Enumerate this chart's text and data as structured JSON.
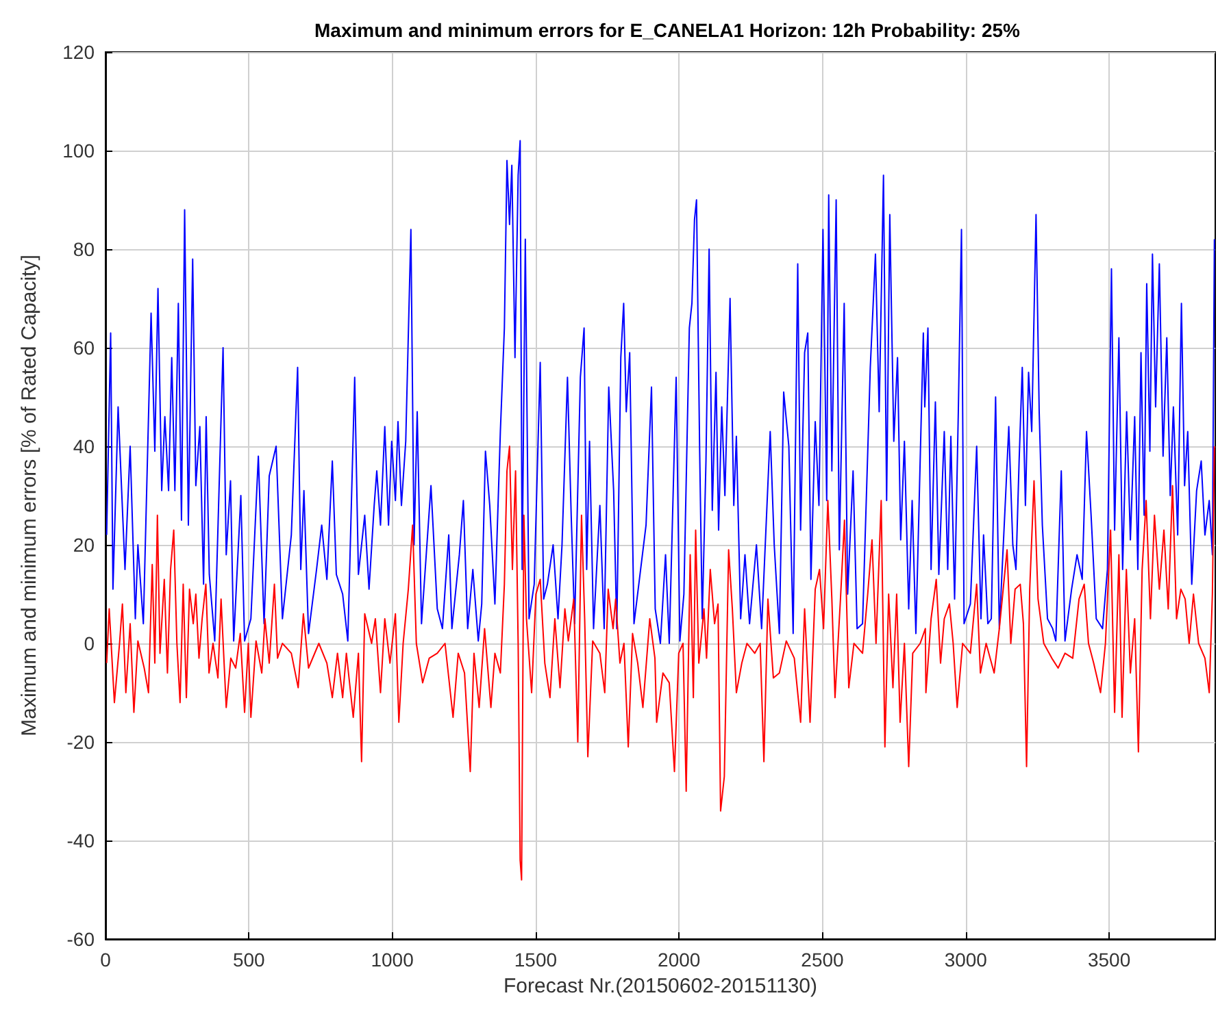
{
  "chart_data": {
    "type": "line",
    "title": "Maximum and minimum errors for E_CANELA1 Horizon: 12h Probability: 25%",
    "xlabel": "Forecast Nr.(20150602-20151130)",
    "ylabel": "Maximum and minimum errors [% of Rated Capacity]",
    "xlim": [
      0,
      3870
    ],
    "xticks": [
      0,
      500,
      1000,
      1500,
      2000,
      2500,
      3000,
      3500
    ],
    "ylim": [
      -60,
      120
    ],
    "yticks": [
      -60,
      -40,
      -20,
      0,
      20,
      40,
      60,
      80,
      100,
      120
    ],
    "grid": true,
    "line_style": "solid",
    "series": [
      {
        "color": "#0000ff",
        "x": [
          4,
          18,
          26,
          44,
          68,
          86,
          104,
          113,
          132,
          159,
          172,
          183,
          196,
          207,
          220,
          231,
          242,
          254,
          265,
          276,
          289,
          304,
          315,
          329,
          342,
          351,
          362,
          381,
          410,
          421,
          436,
          447,
          472,
          485,
          507,
          533,
          553,
          571,
          595,
          617,
          648,
          670,
          681,
          692,
          708,
          736,
          754,
          772,
          791,
          805,
          827,
          845,
          869,
          882,
          904,
          919,
          937,
          946,
          959,
          974,
          987,
          998,
          1011,
          1020,
          1032,
          1047,
          1065,
          1076,
          1087,
          1102,
          1135,
          1157,
          1175,
          1197,
          1208,
          1234,
          1248,
          1263,
          1281,
          1300,
          1312,
          1325,
          1340,
          1358,
          1377,
          1391,
          1400,
          1409,
          1417,
          1428,
          1439,
          1446,
          1453,
          1464,
          1477,
          1495,
          1516,
          1528,
          1541,
          1561,
          1578,
          1592,
          1611,
          1624,
          1636,
          1656,
          1669,
          1678,
          1688,
          1702,
          1724,
          1739,
          1755,
          1772,
          1783,
          1797,
          1807,
          1816,
          1828,
          1843,
          1885,
          1904,
          1917,
          1935,
          1953,
          1966,
          1990,
          2003,
          2017,
          2036,
          2045,
          2054,
          2061,
          2072,
          2081,
          2094,
          2105,
          2116,
          2129,
          2138,
          2149,
          2160,
          2178,
          2191,
          2200,
          2215,
          2230,
          2246,
          2270,
          2288,
          2318,
          2332,
          2350,
          2365,
          2383,
          2398,
          2414,
          2424,
          2438,
          2449,
          2460,
          2475,
          2488,
          2502,
          2515,
          2522,
          2533,
          2548,
          2559,
          2576,
          2588,
          2607,
          2621,
          2640,
          2667,
          2685,
          2698,
          2713,
          2724,
          2735,
          2749,
          2762,
          2773,
          2786,
          2801,
          2813,
          2826,
          2852,
          2857,
          2868,
          2879,
          2894,
          2906,
          2925,
          2937,
          2948,
          2961,
          2974,
          2985,
          2994,
          3016,
          3038,
          3053,
          3062,
          3077,
          3089,
          3104,
          3117,
          3139,
          3150,
          3164,
          3175,
          3186,
          3197,
          3208,
          3219,
          3230,
          3245,
          3256,
          3267,
          3285,
          3303,
          3314,
          3333,
          3346,
          3369,
          3388,
          3406,
          3421,
          3437,
          3455,
          3477,
          3494,
          3508,
          3519,
          3534,
          3547,
          3561,
          3574,
          3589,
          3600,
          3611,
          3622,
          3631,
          3642,
          3651,
          3662,
          3675,
          3688,
          3701,
          3713,
          3724,
          3739,
          3752,
          3763,
          3774,
          3788,
          3805,
          3821,
          3834,
          3849,
          3860,
          3867
        ],
        "values": [
          22,
          63,
          11,
          48,
          15,
          40,
          5,
          20,
          4,
          67,
          39,
          72,
          31,
          46,
          31,
          58,
          31,
          69,
          25,
          88,
          24,
          78,
          32,
          44,
          12,
          46,
          14,
          0.5,
          60,
          18,
          33,
          0.5,
          30,
          0.5,
          5,
          38,
          4,
          34,
          40,
          5,
          22,
          56,
          15,
          31,
          2,
          15,
          24,
          13,
          37,
          14,
          10,
          0.5,
          54,
          14,
          26,
          11,
          28,
          35,
          24,
          44,
          24,
          41,
          29,
          45,
          28,
          41,
          84,
          20,
          47,
          4,
          32,
          7,
          3,
          22,
          3,
          18,
          29,
          3,
          15,
          0.5,
          8,
          39,
          28,
          8,
          43,
          64,
          98,
          85,
          97,
          58,
          95,
          102,
          15,
          82,
          5,
          12,
          57,
          9,
          12,
          20,
          5,
          20,
          54,
          26,
          4,
          54,
          64,
          15,
          41,
          3,
          28,
          3,
          52,
          31,
          3,
          58,
          69,
          47,
          59,
          4,
          24,
          52,
          7,
          0,
          18,
          0,
          54,
          0.5,
          10,
          64,
          69,
          86,
          90,
          39,
          5,
          37,
          80,
          27,
          55,
          23,
          48,
          30,
          70,
          28,
          42,
          5,
          18,
          4,
          20,
          3,
          43,
          20,
          2,
          51,
          40,
          2,
          77,
          23,
          59,
          63,
          13,
          45,
          28,
          84,
          29,
          91,
          35,
          90,
          19,
          69,
          10,
          35,
          3,
          4,
          56,
          79,
          47,
          95,
          29,
          87,
          41,
          58,
          21,
          41,
          7,
          29,
          2,
          63,
          48,
          64,
          15,
          49,
          14,
          43,
          15,
          42,
          9,
          47,
          84,
          4,
          8,
          40,
          5,
          22,
          4,
          5,
          50,
          3,
          30,
          44,
          20,
          15,
          37,
          56,
          28,
          55,
          43,
          87,
          47,
          24,
          5,
          3,
          0.5,
          35,
          0.5,
          11,
          18,
          13,
          43,
          26,
          5,
          3,
          15,
          76,
          23,
          62,
          15,
          47,
          21,
          46,
          15,
          59,
          26,
          73,
          39,
          79,
          48,
          77,
          38,
          62,
          30,
          48,
          22,
          69,
          32,
          43,
          12,
          31,
          37,
          22,
          29,
          18,
          82
        ]
      },
      {
        "color": "#ff0000",
        "x": [
          4,
          13,
          31,
          49,
          59,
          71,
          86,
          99,
          113,
          135,
          150,
          163,
          172,
          181,
          190,
          205,
          216,
          227,
          238,
          249,
          260,
          271,
          282,
          293,
          306,
          315,
          326,
          337,
          350,
          361,
          375,
          392,
          403,
          421,
          437,
          454,
          470,
          485,
          498,
          507,
          525,
          545,
          556,
          571,
          589,
          600,
          617,
          648,
          672,
          690,
          708,
          744,
          772,
          791,
          809,
          827,
          840,
          864,
          882,
          893,
          904,
          928,
          941,
          959,
          974,
          992,
          1011,
          1023,
          1038,
          1056,
          1071,
          1084,
          1106,
          1129,
          1157,
          1184,
          1212,
          1230,
          1252,
          1272,
          1285,
          1303,
          1322,
          1344,
          1358,
          1377,
          1391,
          1400,
          1409,
          1419,
          1430,
          1439,
          1446,
          1451,
          1459,
          1468,
          1486,
          1501,
          1516,
          1532,
          1550,
          1567,
          1585,
          1602,
          1614,
          1633,
          1647,
          1660,
          1671,
          1682,
          1699,
          1724,
          1741,
          1753,
          1770,
          1779,
          1794,
          1808,
          1823,
          1838,
          1856,
          1874,
          1898,
          1916,
          1922,
          1944,
          1966,
          1984,
          1999,
          2014,
          2025,
          2039,
          2050,
          2058,
          2069,
          2087,
          2096,
          2109,
          2124,
          2136,
          2145,
          2158,
          2173,
          2186,
          2200,
          2219,
          2237,
          2264,
          2283,
          2296,
          2310,
          2329,
          2350,
          2374,
          2402,
          2424,
          2438,
          2457,
          2475,
          2490,
          2504,
          2519,
          2533,
          2544,
          2563,
          2577,
          2592,
          2610,
          2640,
          2658,
          2673,
          2687,
          2705,
          2718,
          2731,
          2746,
          2759,
          2771,
          2786,
          2801,
          2815,
          2841,
          2859,
          2861,
          2879,
          2897,
          2912,
          2925,
          2943,
          2956,
          2970,
          2989,
          3016,
          3038,
          3051,
          3071,
          3099,
          3117,
          3144,
          3157,
          3172,
          3190,
          3201,
          3212,
          3223,
          3238,
          3252,
          3272,
          3300,
          3322,
          3346,
          3373,
          3395,
          3413,
          3428,
          3446,
          3470,
          3487,
          3505,
          3519,
          3534,
          3545,
          3560,
          3574,
          3589,
          3602,
          3615,
          3629,
          3644,
          3658,
          3675,
          3691,
          3706,
          3721,
          3735,
          3750,
          3765,
          3779,
          3794,
          3812,
          3834,
          3849,
          3860,
          3867
        ],
        "values": [
          -4,
          7,
          -12,
          0,
          8,
          -10,
          4,
          -14,
          0.5,
          -5,
          -10,
          16,
          -4,
          26,
          -2,
          13,
          -6,
          15,
          23,
          0,
          -12,
          12,
          -11,
          11,
          4,
          10,
          -3,
          5,
          12,
          -6,
          0,
          -7,
          9,
          -13,
          -3,
          -5,
          2,
          -14,
          0,
          -15,
          0.5,
          -6,
          5,
          -4,
          12,
          -3,
          0,
          -2,
          -9,
          6,
          -5,
          0,
          -4,
          -11,
          -2,
          -11,
          -2,
          -15,
          -2,
          -24,
          6,
          0,
          5,
          -10,
          5,
          -4,
          6,
          -16,
          0,
          11,
          24,
          0,
          -8,
          -3,
          -2,
          0,
          -15,
          -2,
          -6,
          -26,
          -2,
          -13,
          3,
          -13,
          -2,
          -6,
          12,
          35,
          40,
          15,
          35,
          0,
          -44,
          -48,
          26,
          5,
          -10,
          10,
          13,
          -4,
          -11,
          5,
          -9,
          7,
          0.5,
          9,
          -20,
          26,
          5,
          -23,
          0.5,
          -2,
          -10,
          11,
          3,
          9,
          -4,
          0,
          -21,
          2,
          -4,
          -13,
          5,
          -3,
          -16,
          -6,
          -8,
          -26,
          -2,
          0,
          -30,
          18,
          -11,
          23,
          -4,
          7,
          -3,
          15,
          4,
          8,
          -34,
          -27,
          19,
          7,
          -10,
          -4,
          0,
          -2,
          0,
          -24,
          9,
          -7,
          -6,
          0.5,
          -3,
          -16,
          7,
          -16,
          11,
          15,
          3,
          29,
          9,
          -11,
          9,
          25,
          -9,
          0,
          -2,
          10,
          21,
          0,
          29,
          -21,
          10,
          -9,
          10,
          -16,
          0,
          -25,
          -2,
          0,
          3,
          -10,
          5,
          13,
          -4,
          5,
          8,
          0,
          -13,
          0,
          -2,
          12,
          -6,
          0,
          -6,
          3,
          19,
          0,
          11,
          12,
          4,
          -25,
          11,
          33,
          9,
          0,
          -3,
          -5,
          -2,
          -3,
          9,
          12,
          0,
          -4,
          -10,
          0,
          23,
          -14,
          18,
          -15,
          15,
          -6,
          5,
          -22,
          15,
          29,
          5,
          26,
          11,
          23,
          7,
          32,
          5,
          11,
          9,
          0,
          10,
          0,
          -3,
          -10,
          10,
          40
        ]
      }
    ]
  }
}
